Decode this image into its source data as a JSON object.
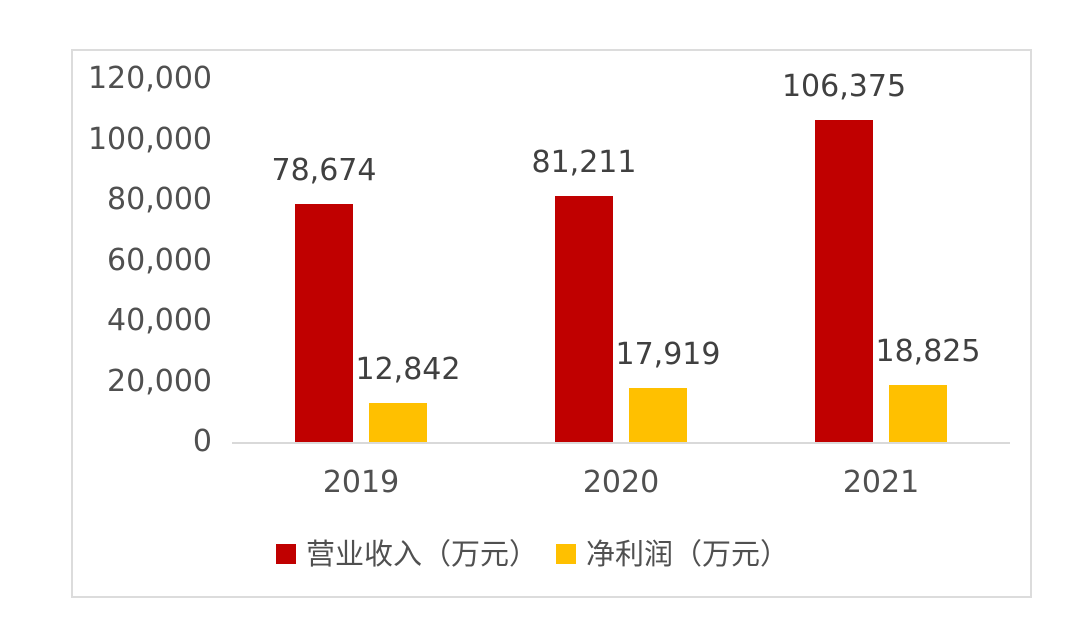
{
  "chart_data": {
    "type": "bar",
    "title": "",
    "xlabel": "",
    "ylabel": "",
    "categories": [
      "2019",
      "2020",
      "2021"
    ],
    "series": [
      {
        "name": "营业收入（万元）",
        "color": "#c00000",
        "values": [
          78674,
          81211,
          106375
        ],
        "labels": [
          "78,674",
          "81,211",
          "106,375"
        ]
      },
      {
        "name": "净利润（万元）",
        "color": "#ffc000",
        "values": [
          12842,
          17919,
          18825
        ],
        "labels": [
          "12,842",
          "17,919",
          "18,825"
        ]
      }
    ],
    "ylim": [
      0,
      120000
    ],
    "yticks": [
      0,
      20000,
      40000,
      60000,
      80000,
      100000,
      120000
    ],
    "ytick_labels": [
      "0",
      "20,000",
      "40,000",
      "60,000",
      "80,000",
      "100,000",
      "120,000"
    ],
    "grid": false,
    "legend_position": "bottom",
    "data_labels": true
  }
}
